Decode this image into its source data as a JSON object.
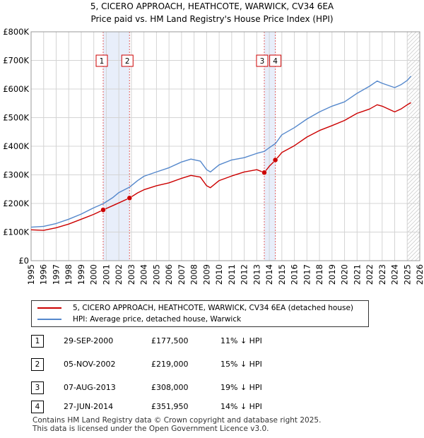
{
  "title_line1": "5, CICERO APPROACH, HEATHCOTE, WARWICK, CV34 6EA",
  "title_line2": "Price paid vs. HM Land Registry's House Price Index (HPI)",
  "colors": {
    "property": "#cc0000",
    "hpi": "#5588cc",
    "shade": "#e8eefa",
    "grid": "#d4d4d4",
    "axes_bg": "#ffffff",
    "marker_line": "#e06060"
  },
  "legend": {
    "property_label": "5, CICERO APPROACH, HEATHCOTE, WARWICK, CV34 6EA (detached house)",
    "hpi_label": "HPI: Average price, detached house, Warwick"
  },
  "sales": [
    {
      "num": "1",
      "date": "29-SEP-2000",
      "price": "£177,500",
      "hpi": "11% ↓ HPI"
    },
    {
      "num": "2",
      "date": "05-NOV-2002",
      "price": "£219,000",
      "hpi": "15% ↓ HPI"
    },
    {
      "num": "3",
      "date": "07-AUG-2013",
      "price": "£308,000",
      "hpi": "19% ↓ HPI"
    },
    {
      "num": "4",
      "date": "27-JUN-2014",
      "price": "£351,950",
      "hpi": "14% ↓ HPI"
    }
  ],
  "footer_line1": "Contains HM Land Registry data © Crown copyright and database right 2025.",
  "footer_line2": "This data is licensed under the Open Government Licence v3.0.",
  "chart_data": {
    "type": "line",
    "title": "Price paid vs. HM Land Registry's House Price Index (HPI)",
    "xlabel": "",
    "ylabel": "",
    "xlim": [
      1995,
      2026
    ],
    "ylim": [
      0,
      800000
    ],
    "x_ticks": [
      1995,
      1996,
      1997,
      1998,
      1999,
      2000,
      2001,
      2002,
      2003,
      2004,
      2005,
      2006,
      2007,
      2008,
      2009,
      2010,
      2011,
      2012,
      2013,
      2014,
      2015,
      2016,
      2017,
      2018,
      2019,
      2020,
      2021,
      2022,
      2023,
      2024,
      2025,
      2026
    ],
    "y_ticks": [
      {
        "value": 0,
        "label": "£0"
      },
      {
        "value": 100000,
        "label": "£100K"
      },
      {
        "value": 200000,
        "label": "£200K"
      },
      {
        "value": 300000,
        "label": "£300K"
      },
      {
        "value": 400000,
        "label": "£400K"
      },
      {
        "value": 500000,
        "label": "£500K"
      },
      {
        "value": 600000,
        "label": "£600K"
      },
      {
        "value": 700000,
        "label": "£700K"
      },
      {
        "value": 800000,
        "label": "£800K"
      }
    ],
    "grid": true,
    "shaded_ranges": [
      [
        2000.75,
        2002.85
      ],
      [
        2013.6,
        2014.5
      ]
    ],
    "hatched_from": 2025.0,
    "series": [
      {
        "name": "5, CICERO APPROACH, HEATHCOTE, WARWICK, CV34 6EA (detached house)",
        "color": "#cc0000",
        "x": [
          1995.0,
          1996.0,
          1997.0,
          1998.0,
          1999.0,
          2000.0,
          2000.75,
          2001.5,
          2002.0,
          2002.85,
          2003.5,
          2004.0,
          2005.0,
          2006.0,
          2007.0,
          2007.75,
          2008.5,
          2009.0,
          2009.3,
          2010.0,
          2011.0,
          2012.0,
          2013.0,
          2013.6,
          2014.0,
          2014.5,
          2015.0,
          2016.0,
          2017.0,
          2018.0,
          2019.0,
          2020.0,
          2021.0,
          2022.0,
          2022.6,
          2023.0,
          2024.0,
          2024.5,
          2025.0,
          2025.3
        ],
        "y": [
          108000,
          106000,
          115000,
          128000,
          145000,
          162000,
          177500,
          192000,
          202000,
          219000,
          237000,
          248000,
          262000,
          272000,
          288000,
          298000,
          292000,
          262000,
          255000,
          280000,
          296000,
          310000,
          318000,
          308000,
          330000,
          351950,
          378000,
          402000,
          432000,
          455000,
          472000,
          490000,
          515000,
          530000,
          545000,
          540000,
          520000,
          530000,
          545000,
          552000
        ]
      },
      {
        "name": "HPI: Average price, detached house, Warwick",
        "color": "#5588cc",
        "x": [
          1995.0,
          1996.0,
          1997.0,
          1998.0,
          1999.0,
          2000.0,
          2000.75,
          2001.5,
          2002.0,
          2002.85,
          2003.5,
          2004.0,
          2005.0,
          2006.0,
          2007.0,
          2007.75,
          2008.5,
          2009.0,
          2009.3,
          2010.0,
          2011.0,
          2012.0,
          2013.0,
          2013.6,
          2014.0,
          2014.5,
          2015.0,
          2016.0,
          2017.0,
          2018.0,
          2019.0,
          2020.0,
          2021.0,
          2022.0,
          2022.6,
          2023.0,
          2024.0,
          2024.5,
          2025.0,
          2025.3
        ],
        "y": [
          117000,
          120000,
          130000,
          145000,
          163000,
          185000,
          199000,
          220000,
          238000,
          257000,
          280000,
          295000,
          310000,
          325000,
          345000,
          355000,
          348000,
          318000,
          310000,
          335000,
          352000,
          360000,
          375000,
          382000,
          395000,
          410000,
          440000,
          465000,
          495000,
          520000,
          540000,
          555000,
          585000,
          610000,
          628000,
          620000,
          605000,
          615000,
          630000,
          645000
        ]
      }
    ],
    "sale_markers": [
      {
        "label": "1",
        "x": 2000.75,
        "y": 177500
      },
      {
        "label": "2",
        "x": 2002.85,
        "y": 219000
      },
      {
        "label": "3",
        "x": 2013.6,
        "y": 308000
      },
      {
        "label": "4",
        "x": 2014.48,
        "y": 351950
      }
    ]
  }
}
